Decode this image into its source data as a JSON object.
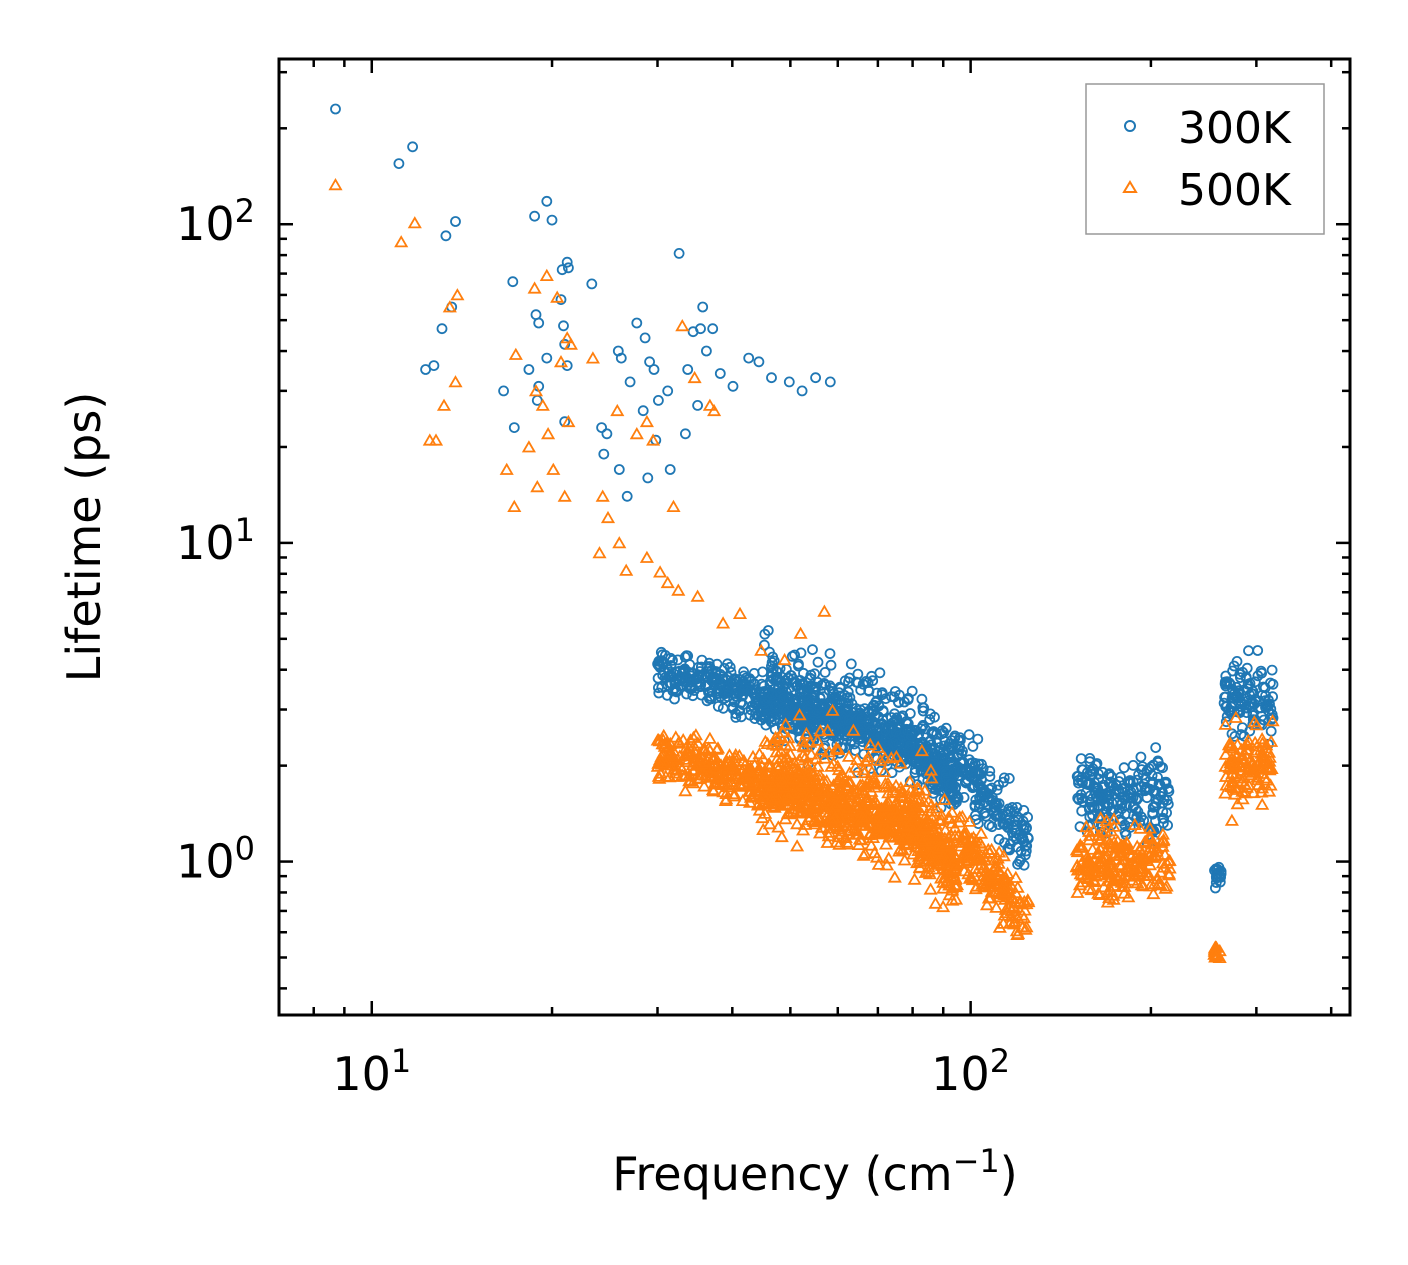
{
  "chart_data": {
    "type": "scatter",
    "xscale": "log",
    "yscale": "log",
    "xlim": [
      7,
      430
    ],
    "ylim": [
      0.33,
      330
    ],
    "xlabel": "Frequency (cm",
    "xlabel_sup": "−1",
    "xlabel_end": ")",
    "ylabel": "Lifetime (ps)",
    "xticks": [
      {
        "value": 10,
        "base": "10",
        "exp": "1"
      },
      {
        "value": 100,
        "base": "10",
        "exp": "2"
      }
    ],
    "yticks": [
      {
        "value": 1,
        "base": "10",
        "exp": "0"
      },
      {
        "value": 10,
        "base": "10",
        "exp": "1"
      },
      {
        "value": 100,
        "base": "10",
        "exp": "2"
      }
    ],
    "legend_position": "top-right",
    "series": [
      {
        "name": "300K",
        "color": "#1f77b4",
        "marker": "circle",
        "points": [
          [
            8.7,
            230
          ],
          [
            11.1,
            155
          ],
          [
            11.7,
            175
          ],
          [
            13.3,
            92
          ],
          [
            13.8,
            102
          ],
          [
            13.6,
            55
          ],
          [
            12.7,
            36
          ],
          [
            12.3,
            35
          ],
          [
            13.1,
            47
          ],
          [
            18.7,
            106
          ],
          [
            19.6,
            118
          ],
          [
            20.0,
            103
          ],
          [
            17.2,
            66
          ],
          [
            20.8,
            72
          ],
          [
            21.2,
            76
          ],
          [
            21.3,
            73
          ],
          [
            20.7,
            58
          ],
          [
            23.3,
            65
          ],
          [
            18.8,
            52
          ],
          [
            19.0,
            49
          ],
          [
            18.3,
            35
          ],
          [
            19.6,
            38
          ],
          [
            16.6,
            30
          ],
          [
            18.9,
            28
          ],
          [
            19.0,
            31
          ],
          [
            17.3,
            23
          ],
          [
            20.9,
            48
          ],
          [
            21.0,
            42
          ],
          [
            21.2,
            36
          ],
          [
            21.0,
            24
          ],
          [
            24.2,
            23
          ],
          [
            24.7,
            22
          ],
          [
            24.4,
            19
          ],
          [
            25.9,
            17
          ],
          [
            26.7,
            14
          ],
          [
            25.8,
            40
          ],
          [
            26.1,
            38
          ],
          [
            27.7,
            49
          ],
          [
            28.6,
            44
          ],
          [
            27.0,
            32
          ],
          [
            29.1,
            37
          ],
          [
            29.6,
            35
          ],
          [
            32.6,
            81
          ],
          [
            34.4,
            46
          ],
          [
            35.7,
            55
          ],
          [
            35.4,
            47
          ],
          [
            37.1,
            47
          ],
          [
            36.2,
            40
          ],
          [
            33.7,
            35
          ],
          [
            31.2,
            30
          ],
          [
            30.1,
            28
          ],
          [
            28.4,
            26
          ],
          [
            29.8,
            21
          ],
          [
            31.5,
            17
          ],
          [
            28.9,
            16
          ],
          [
            33.4,
            22
          ],
          [
            35.0,
            27
          ],
          [
            38.2,
            34
          ],
          [
            40.1,
            31
          ],
          [
            42.6,
            38
          ],
          [
            44.3,
            37
          ],
          [
            46.5,
            33
          ],
          [
            49.8,
            32
          ],
          [
            52.3,
            30
          ],
          [
            55.1,
            33
          ],
          [
            58.3,
            32
          ]
        ],
        "bands": [
          [
            30,
            95,
            4.0,
            1.2
          ],
          [
            45,
            95,
            3.5,
            1.5
          ],
          [
            95,
            125,
            2.6,
            1.3
          ],
          [
            150,
            215,
            1.6,
            1.4
          ],
          [
            255,
            262,
            0.9,
            1.08
          ],
          [
            265,
            320,
            3.2,
            1.35
          ]
        ]
      },
      {
        "name": "500K",
        "color": "#ff7f0e",
        "marker": "triangle",
        "points": [
          [
            8.7,
            133
          ],
          [
            11.2,
            88
          ],
          [
            11.8,
            101
          ],
          [
            13.5,
            55
          ],
          [
            13.9,
            60
          ],
          [
            13.8,
            32
          ],
          [
            13.2,
            27
          ],
          [
            12.5,
            21
          ],
          [
            12.8,
            21
          ],
          [
            17.4,
            39
          ],
          [
            18.7,
            63
          ],
          [
            19.6,
            69
          ],
          [
            20.4,
            59
          ],
          [
            21.2,
            44
          ],
          [
            21.5,
            42
          ],
          [
            20.7,
            37
          ],
          [
            23.4,
            38
          ],
          [
            18.8,
            30
          ],
          [
            19.3,
            27
          ],
          [
            18.3,
            20
          ],
          [
            19.7,
            22
          ],
          [
            16.8,
            17
          ],
          [
            17.3,
            13
          ],
          [
            18.9,
            15
          ],
          [
            20.1,
            17
          ],
          [
            21.3,
            24
          ],
          [
            21.0,
            14
          ],
          [
            24.3,
            14
          ],
          [
            24.8,
            12
          ],
          [
            25.9,
            10
          ],
          [
            26.6,
            8.2
          ],
          [
            24.0,
            9.3
          ],
          [
            25.7,
            26
          ],
          [
            27.7,
            22
          ],
          [
            28.8,
            24
          ],
          [
            29.5,
            21
          ],
          [
            31.9,
            13
          ],
          [
            33.0,
            48
          ],
          [
            34.6,
            33
          ],
          [
            36.7,
            27
          ],
          [
            37.3,
            26
          ],
          [
            30.3,
            8.1
          ],
          [
            31.2,
            7.5
          ],
          [
            28.8,
            9.0
          ],
          [
            32.5,
            7.1
          ],
          [
            35.0,
            6.8
          ],
          [
            38.6,
            5.6
          ],
          [
            41.2,
            6.0
          ],
          [
            44.7,
            4.6
          ],
          [
            48.9,
            4.3
          ],
          [
            52.0,
            5.2
          ],
          [
            57.0,
            6.1
          ]
        ],
        "bands": [
          [
            30,
            95,
            2.2,
            1.25
          ],
          [
            45,
            95,
            1.9,
            1.6
          ],
          [
            95,
            125,
            1.5,
            1.3
          ],
          [
            150,
            215,
            1.0,
            1.35
          ],
          [
            255,
            262,
            0.52,
            1.08
          ],
          [
            265,
            320,
            2.0,
            1.4
          ]
        ]
      }
    ]
  }
}
